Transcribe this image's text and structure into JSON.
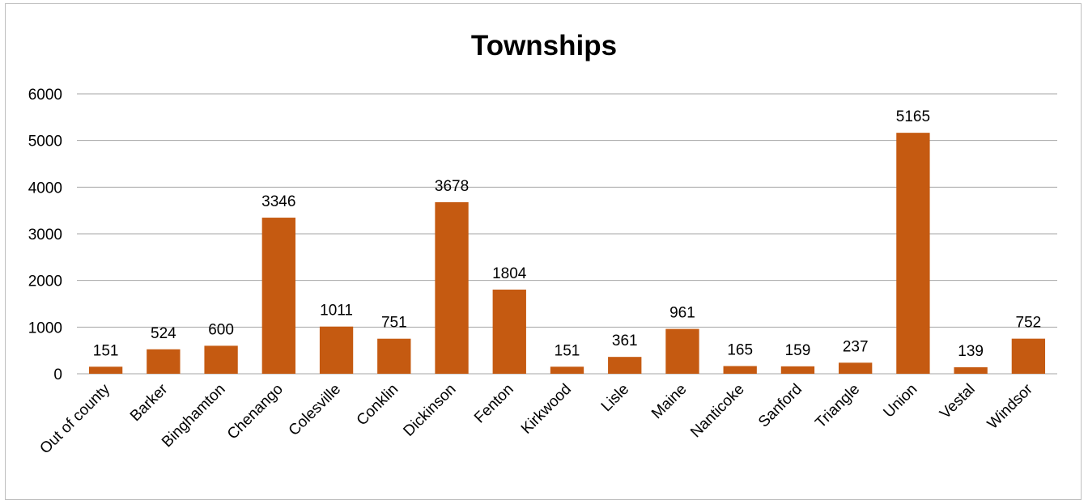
{
  "chart_data": {
    "type": "bar",
    "title": "Townships",
    "xlabel": "",
    "ylabel": "",
    "ylim": [
      0,
      6000
    ],
    "yticks": [
      0,
      1000,
      2000,
      3000,
      4000,
      5000,
      6000
    ],
    "grid": true,
    "legend": "none",
    "bar_color": "#c55a11",
    "categories": [
      "Out of county",
      "Barker",
      "Binghamton",
      "Chenango",
      "Colesville",
      "Conklin",
      "Dickinson",
      "Fenton",
      "Kirkwood",
      "Lisle",
      "Maine",
      "Nanticoke",
      "Sanford",
      "Triangle",
      "Union",
      "Vestal",
      "Windsor"
    ],
    "values": [
      151,
      524,
      600,
      3346,
      1011,
      751,
      3678,
      1804,
      151,
      361,
      961,
      165,
      159,
      237,
      5165,
      139,
      752
    ]
  }
}
